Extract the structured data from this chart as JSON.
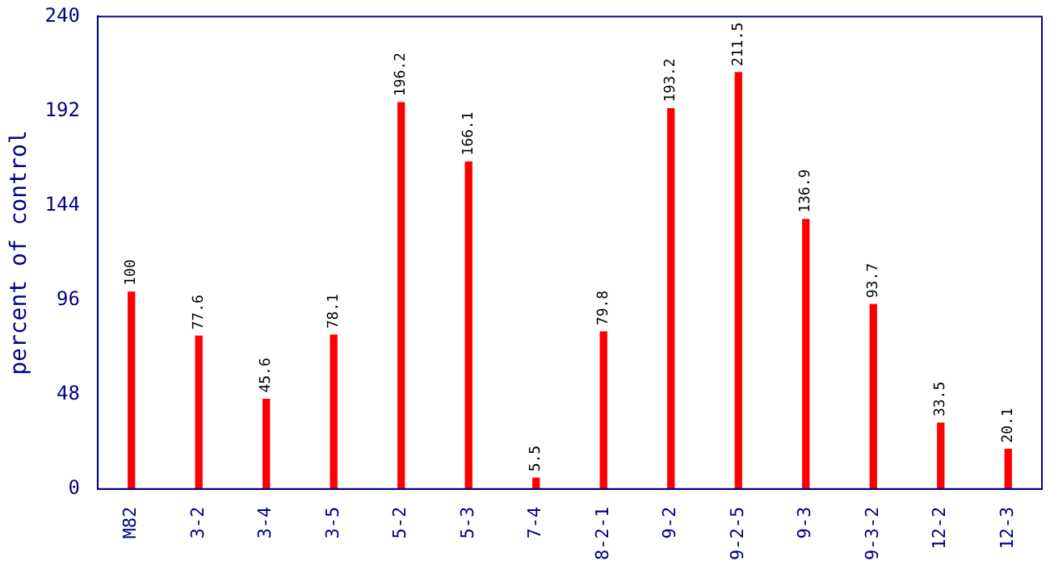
{
  "chart_data": {
    "type": "bar",
    "ylabel": "percent of control",
    "categories": [
      "M82",
      "3-2",
      "3-4",
      "3-5",
      "5-2",
      "5-3",
      "7-4",
      "8-2-1",
      "9-2",
      "9-2-5",
      "9-3",
      "9-3-2",
      "12-2",
      "12-3"
    ],
    "values": [
      100,
      77.6,
      45.6,
      78.1,
      196.2,
      166.1,
      5.5,
      79.8,
      193.2,
      211.5,
      136.9,
      93.7,
      33.5,
      20.1
    ],
    "color": "#ff0000",
    "ylim": [
      0,
      240
    ],
    "yticks": [
      0,
      48,
      96,
      144,
      192,
      240
    ],
    "grid": false,
    "legend": false,
    "data_labels": true
  }
}
